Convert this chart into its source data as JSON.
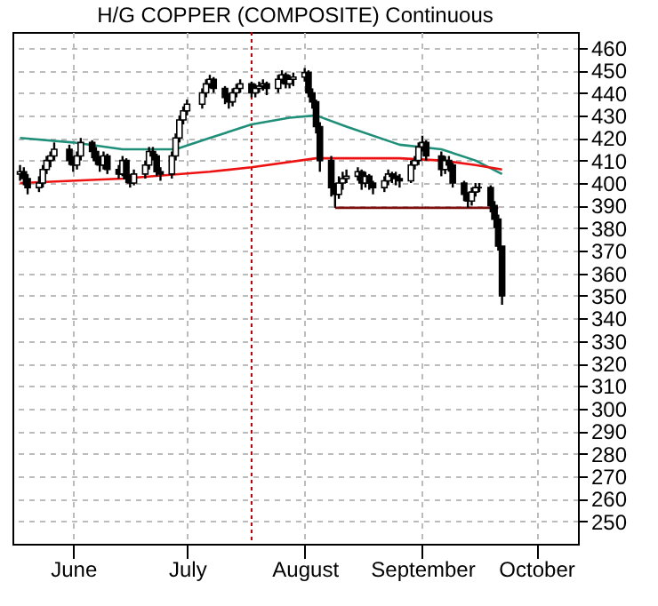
{
  "chart_data": {
    "type": "candlestick",
    "title": "H/G COPPER (COMPOSITE) Continuous",
    "x": [
      "--05-18",
      "--05-19",
      "--05-20",
      "--05-23",
      "--05-24",
      "--05-25",
      "--05-26",
      "--05-27",
      "--05-31",
      "--06-01",
      "--06-02",
      "--06-03",
      "--06-06",
      "--06-07",
      "--06-08",
      "--06-09",
      "--06-10",
      "--06-13",
      "--06-14",
      "--06-15",
      "--06-16",
      "--06-17",
      "--06-20",
      "--06-21",
      "--06-22",
      "--06-23",
      "--06-24",
      "--06-27",
      "--06-28",
      "--06-29",
      "--06-30",
      "--07-01",
      "--07-05",
      "--07-06",
      "--07-07",
      "--07-08",
      "--07-11",
      "--07-12",
      "--07-13",
      "--07-14",
      "--07-15",
      "--07-18",
      "--07-19",
      "--07-20",
      "--07-21",
      "--07-22",
      "--07-25",
      "--07-26",
      "--07-27",
      "--07-28",
      "--07-29",
      "--08-01",
      "--08-02",
      "--08-03",
      "--08-04",
      "--08-05",
      "--08-08",
      "--08-09",
      "--08-10",
      "--08-11",
      "--08-12",
      "--08-15",
      "--08-16",
      "--08-17",
      "--08-18",
      "--08-19",
      "--08-22",
      "--08-23",
      "--08-24",
      "--08-25",
      "--08-26",
      "--08-29",
      "--08-30",
      "--08-31",
      "--09-01",
      "--09-02",
      "--09-06",
      "--09-07",
      "--09-08",
      "--09-09",
      "--09-12",
      "--09-13",
      "--09-14",
      "--09-15",
      "--09-16",
      "--09-19",
      "--09-20",
      "--09-21",
      "--09-22"
    ],
    "ohlc": [
      [
        404,
        408,
        401,
        405
      ],
      [
        405,
        407,
        399,
        402
      ],
      [
        402,
        404,
        395,
        398
      ],
      [
        398,
        403,
        396,
        400
      ],
      [
        400,
        408,
        398,
        406
      ],
      [
        406,
        412,
        404,
        410
      ],
      [
        410,
        414,
        407,
        412
      ],
      [
        412,
        418,
        410,
        415
      ],
      [
        415,
        417,
        408,
        410
      ],
      [
        410,
        412,
        405,
        408
      ],
      [
        408,
        414,
        406,
        412
      ],
      [
        412,
        420,
        410,
        418
      ],
      [
        418,
        419,
        411,
        414
      ],
      [
        414,
        416,
        408,
        410
      ],
      [
        410,
        412,
        405,
        408
      ],
      [
        408,
        414,
        406,
        412
      ],
      [
        412,
        413,
        404,
        406
      ],
      [
        406,
        408,
        402,
        404
      ],
      [
        404,
        412,
        403,
        410
      ],
      [
        410,
        411,
        400,
        402
      ],
      [
        402,
        404,
        398,
        400
      ],
      [
        400,
        406,
        399,
        404
      ],
      [
        404,
        410,
        402,
        408
      ],
      [
        408,
        416,
        406,
        414
      ],
      [
        414,
        416,
        410,
        412
      ],
      [
        412,
        413,
        403,
        405
      ],
      [
        405,
        407,
        401,
        404
      ],
      [
        404,
        414,
        402,
        412
      ],
      [
        412,
        422,
        410,
        420
      ],
      [
        420,
        430,
        418,
        428
      ],
      [
        428,
        434,
        426,
        432
      ],
      [
        432,
        437,
        430,
        435
      ],
      [
        435,
        442,
        433,
        440
      ],
      [
        440,
        446,
        438,
        444
      ],
      [
        444,
        448,
        442,
        446
      ],
      [
        446,
        447,
        440,
        442
      ],
      [
        442,
        443,
        435,
        438
      ],
      [
        438,
        440,
        433,
        436
      ],
      [
        436,
        442,
        434,
        440
      ],
      [
        440,
        444,
        438,
        442
      ],
      [
        442,
        446,
        440,
        444
      ],
      [
        444,
        445,
        438,
        440
      ],
      [
        440,
        444,
        438,
        442
      ],
      [
        442,
        445,
        440,
        443
      ],
      [
        443,
        446,
        441,
        444
      ],
      [
        444,
        445,
        439,
        442
      ],
      [
        442,
        448,
        440,
        446
      ],
      [
        446,
        450,
        444,
        448
      ],
      [
        448,
        449,
        442,
        444
      ],
      [
        444,
        448,
        442,
        446
      ],
      [
        446,
        449,
        443,
        447
      ],
      [
        447,
        451,
        445,
        449
      ],
      [
        449,
        450,
        438,
        440
      ],
      [
        440,
        442,
        433,
        436
      ],
      [
        436,
        437,
        422,
        425
      ],
      [
        425,
        427,
        405,
        410
      ],
      [
        410,
        412,
        394,
        398
      ],
      [
        398,
        400,
        389,
        395
      ],
      [
        395,
        403,
        393,
        400
      ],
      [
        400,
        405,
        397,
        402
      ],
      [
        402,
        406,
        400,
        403
      ],
      [
        403,
        407,
        401,
        405
      ],
      [
        405,
        406,
        397,
        400
      ],
      [
        400,
        405,
        398,
        403
      ],
      [
        403,
        404,
        397,
        400
      ],
      [
        400,
        401,
        395,
        398
      ],
      [
        398,
        403,
        396,
        401
      ],
      [
        401,
        406,
        399,
        404
      ],
      [
        404,
        405,
        400,
        403
      ],
      [
        403,
        405,
        399,
        402
      ],
      [
        402,
        404,
        398,
        401
      ],
      [
        401,
        410,
        400,
        408
      ],
      [
        408,
        412,
        406,
        410
      ],
      [
        410,
        418,
        408,
        416
      ],
      [
        416,
        421,
        414,
        418
      ],
      [
        418,
        419,
        410,
        412
      ],
      [
        412,
        414,
        403,
        406
      ],
      [
        406,
        412,
        404,
        410
      ],
      [
        410,
        412,
        405,
        408
      ],
      [
        408,
        409,
        398,
        400
      ],
      [
        400,
        401,
        392,
        395
      ],
      [
        395,
        396,
        389,
        392
      ],
      [
        392,
        398,
        390,
        396
      ],
      [
        396,
        400,
        394,
        398
      ],
      [
        398,
        400,
        396,
        398
      ],
      [
        398,
        399,
        387,
        390
      ],
      [
        390,
        392,
        380,
        384
      ],
      [
        384,
        386,
        370,
        372
      ],
      [
        372,
        372,
        346,
        350
      ]
    ],
    "color": "#000000",
    "series": [
      {
        "type": "line",
        "color": "#1f8f7a",
        "x": [
          "--05-18",
          "--06-01",
          "--06-14",
          "--06-28",
          "--07-07",
          "--07-18",
          "--07-28",
          "--08-04",
          "--08-12",
          "--08-26",
          "--09-06",
          "--09-15",
          "--09-22"
        ],
        "values": [
          420,
          418,
          415,
          415,
          420,
          426,
          429,
          430,
          425,
          417,
          415,
          410,
          404
        ]
      },
      {
        "type": "line",
        "color": "#ee1111",
        "x": [
          "--05-18",
          "--06-14",
          "--07-07",
          "--07-18",
          "--08-04",
          "--08-26",
          "--09-06",
          "--09-15",
          "--09-22"
        ],
        "values": [
          400,
          402,
          405,
          407,
          411,
          411,
          410,
          408,
          406
        ]
      },
      {
        "type": "line",
        "color": "#7f1010",
        "x": [
          "--08-09",
          "--09-21"
        ],
        "values": [
          389,
          389
        ]
      }
    ],
    "ref_lines": [
      {
        "axis": "x",
        "value": "--07-18",
        "color": "#b00000",
        "line_style": "dotted"
      }
    ],
    "xlim": [
      "--05-16",
      "--10-12"
    ],
    "xticks": [
      {
        "value": "--06-01",
        "label": "June"
      },
      {
        "value": "--07-01",
        "label": "July"
      },
      {
        "value": "--08-01",
        "label": "August"
      },
      {
        "value": "--09-01",
        "label": "September"
      },
      {
        "value": "--10-01",
        "label": "October"
      }
    ],
    "ylim": [
      240,
      467
    ],
    "yticks": [
      250,
      260,
      270,
      280,
      290,
      300,
      310,
      320,
      330,
      340,
      350,
      360,
      370,
      380,
      390,
      400,
      410,
      420,
      430,
      440,
      450,
      460
    ],
    "grid": true
  }
}
